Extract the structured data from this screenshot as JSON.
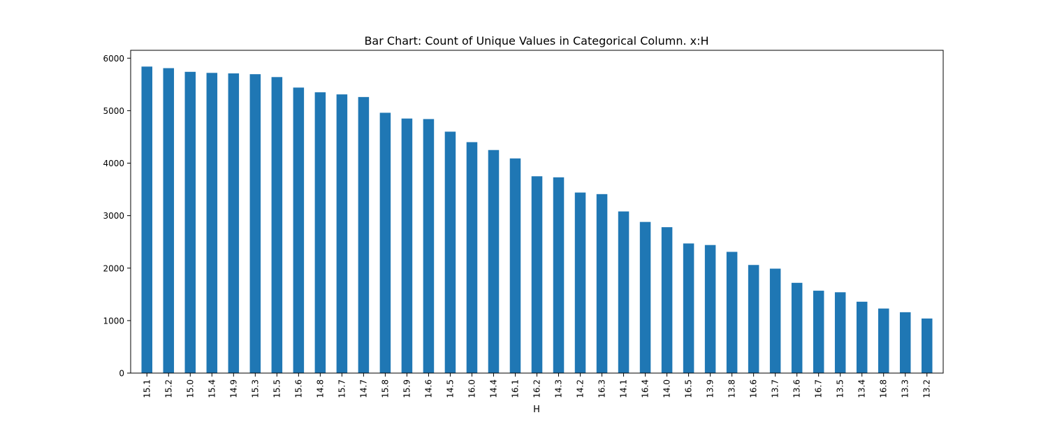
{
  "chart_data": {
    "type": "bar",
    "title": "Bar Chart: Count of Unique Values in Categorical Column. x:H",
    "xlabel": "H",
    "ylabel": "",
    "categories": [
      "15.1",
      "15.2",
      "15.0",
      "15.4",
      "14.9",
      "15.3",
      "15.5",
      "15.6",
      "14.8",
      "15.7",
      "14.7",
      "15.8",
      "15.9",
      "14.6",
      "14.5",
      "16.0",
      "14.4",
      "16.1",
      "16.2",
      "14.3",
      "14.2",
      "16.3",
      "14.1",
      "16.4",
      "14.0",
      "16.5",
      "13.9",
      "13.8",
      "16.6",
      "13.7",
      "13.6",
      "16.7",
      "13.5",
      "13.4",
      "16.8",
      "13.3",
      "13.2"
    ],
    "values": [
      5840,
      5810,
      5740,
      5720,
      5710,
      5695,
      5640,
      5440,
      5350,
      5310,
      5260,
      4960,
      4850,
      4840,
      4600,
      4400,
      4250,
      4090,
      3750,
      3730,
      3440,
      3410,
      3080,
      2880,
      2780,
      2470,
      2440,
      2310,
      2060,
      1990,
      1720,
      1570,
      1540,
      1360,
      1230,
      1160,
      1040
    ],
    "ylim": [
      0,
      6150
    ],
    "yticks": [
      0,
      1000,
      2000,
      3000,
      4000,
      5000,
      6000
    ],
    "grid": false,
    "legend": "none",
    "bar_color": "#1f77b4"
  }
}
